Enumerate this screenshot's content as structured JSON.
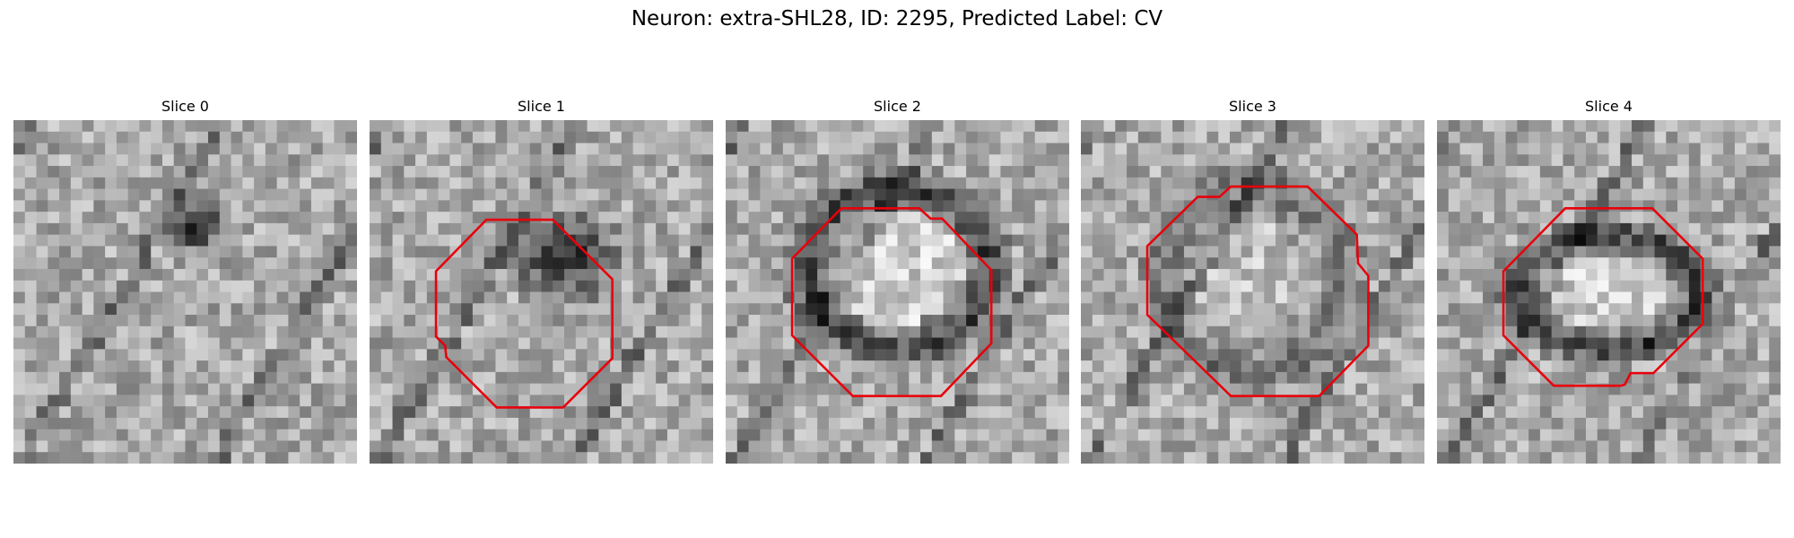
{
  "title": "Neuron: extra-SHL28, ID: 2295, Predicted Label: CV",
  "panels": [
    {
      "title": "Slice 0"
    },
    {
      "title": "Slice 1"
    },
    {
      "title": "Slice 2"
    },
    {
      "title": "Slice 3"
    },
    {
      "title": "Slice 4"
    }
  ]
}
